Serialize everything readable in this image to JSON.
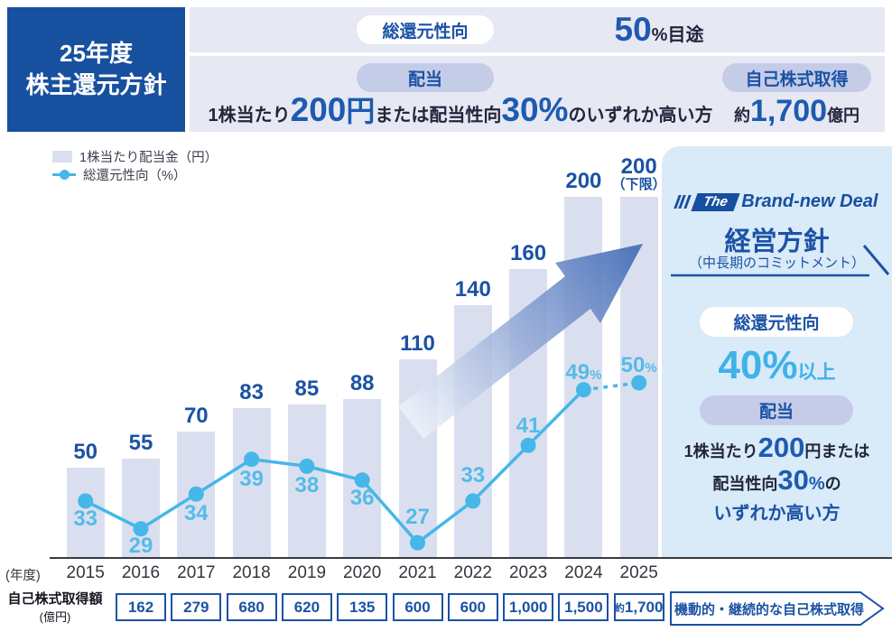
{
  "header": {
    "fiscal_title_line1": "25年度",
    "fiscal_title_line2": "株主還元方針",
    "total_return": {
      "pill": "総還元性向",
      "num": "50",
      "suffix": "%目途"
    },
    "dividend": {
      "pill": "配当",
      "pre": "1株当たり",
      "num1": "200",
      "unit1": "円",
      "mid": "または配当性向",
      "num2": "30%",
      "post": "のいずれか高い方"
    },
    "buyback": {
      "pill": "自己株式取得",
      "pre": "約",
      "num": "1,700",
      "unit": "億円"
    }
  },
  "legend": {
    "bar": "1株当たり配当金（円）",
    "line": "総還元性向（%）"
  },
  "chart_data": {
    "type": "bar+line",
    "categories": [
      "2015",
      "2016",
      "2017",
      "2018",
      "2019",
      "2020",
      "2021",
      "2022",
      "2023",
      "2024",
      "2025"
    ],
    "x_axis_prefix": "(年度)",
    "series": [
      {
        "name": "1株当たり配当金（円）",
        "type": "bar",
        "values": [
          50,
          55,
          70,
          83,
          85,
          88,
          110,
          140,
          160,
          200,
          200
        ],
        "value_labels": [
          "50",
          "55",
          "70",
          "83",
          "85",
          "88",
          "110",
          "140",
          "160",
          "200",
          "200"
        ],
        "annotation": {
          "index": 10,
          "text": "（下限）"
        }
      },
      {
        "name": "総還元性向（%）",
        "type": "line",
        "values": [
          33,
          29,
          34,
          39,
          38,
          36,
          27,
          33,
          41,
          49,
          50
        ],
        "value_labels": [
          "33",
          "29",
          "34",
          "39",
          "38",
          "36",
          "27",
          "33",
          "41",
          "49%",
          "50%"
        ],
        "dashed_segment_from_index": 9
      }
    ],
    "ylim_bar": [
      0,
      200
    ],
    "grid": false,
    "legend_position": "top-left"
  },
  "buyback_table": {
    "row_label_line1": "自己株式取得額",
    "row_label_line2": "(億円)",
    "start_category": "2016",
    "values": [
      "162",
      "279",
      "680",
      "620",
      "135",
      "600",
      "600",
      "1,000",
      "1,500",
      "約1,700"
    ],
    "arrow_note": "機動的・継続的な自己株式取得"
  },
  "side_panel": {
    "logo_the": "The",
    "logo_brand": "Brand-new Deal",
    "title": "経営方針",
    "subtitle": "（中長期のコミットメント）",
    "total_return_pill": "総還元性向",
    "total_return_num": "40%",
    "total_return_suffix": "以上",
    "dividend_pill": "配当",
    "line1_pre": "1株当たり",
    "line1_num": "200",
    "line1_post": "円または",
    "line2_pre": "配当性向",
    "line2_num": "30",
    "line2_pct": "%",
    "line2_post": "の",
    "line3": "いずれか高い方"
  },
  "colors": {
    "primary_blue": "#17509f",
    "accent_blue": "#1b52a5",
    "number_blue": "#1d5bb0",
    "line_blue": "#45b7e8",
    "line_label_blue": "#55bbe8",
    "light_blue": "#3fb2e8",
    "bar_fill": "#dadff0",
    "band_bg": "#e6e8f3",
    "pill_lavender": "#c5cce8",
    "panel_bg": "#d9eaf8"
  }
}
